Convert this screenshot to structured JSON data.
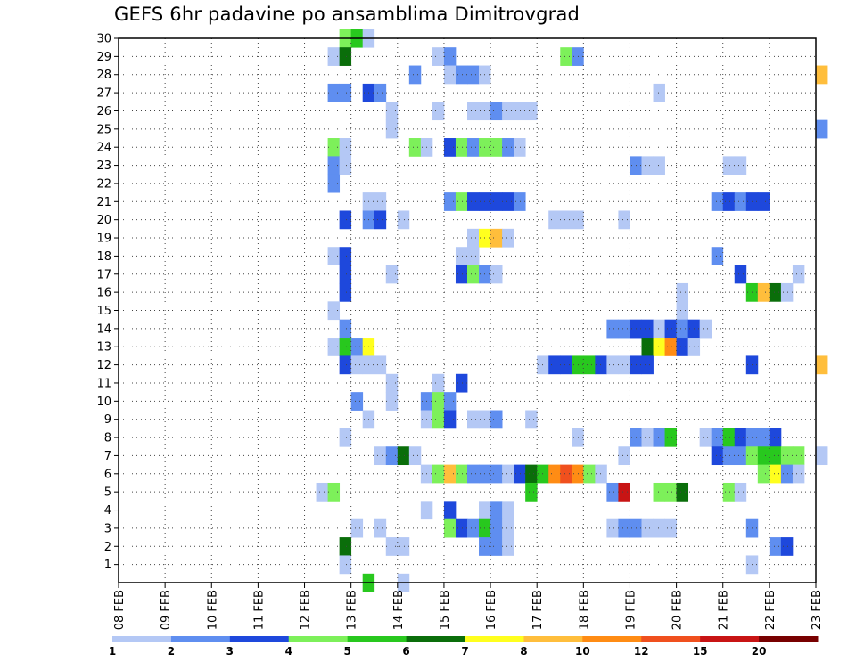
{
  "title": "GEFS 6hr padavine po ansamblima Dimitrovgrad",
  "chart_data": {
    "type": "heatmap",
    "title": "GEFS 6hr padavine po ansamblima Dimitrovgrad",
    "x_labels": [
      "08 FEB",
      "09 FEB",
      "10 FEB",
      "11 FEB",
      "12 FEB",
      "13 FEB",
      "14 FEB",
      "15 FEB",
      "16 FEB",
      "17 FEB",
      "18 FEB",
      "19 FEB",
      "20 FEB",
      "21 FEB",
      "22 FEB",
      "23 FEB"
    ],
    "y_labels": [
      "1",
      "2",
      "3",
      "4",
      "5",
      "6",
      "7",
      "8",
      "9",
      "10",
      "11",
      "12",
      "13",
      "14",
      "15",
      "16",
      "17",
      "18",
      "19",
      "20",
      "21",
      "22",
      "23",
      "24",
      "25",
      "26",
      "27",
      "28",
      "29",
      "30"
    ],
    "xlim": [
      "08 FEB",
      "23 FEB"
    ],
    "ylim": [
      0,
      30
    ],
    "grid": true,
    "legend": {
      "labels": [
        "1",
        "2",
        "3",
        "4",
        "5",
        "6",
        "7",
        "8",
        "10",
        "12",
        "15",
        "20"
      ],
      "colors": [
        "#b4c8f5",
        "#5f8ef0",
        "#1e48dc",
        "#7df05a",
        "#28c81e",
        "#0a6e0a",
        "#ffff1e",
        "#ffbe3c",
        "#ff8c14",
        "#f0501e",
        "#c81414",
        "#780000"
      ]
    },
    "cells": [
      [
        30,
        12.75,
        1,
        4
      ],
      [
        30,
        13,
        1,
        5
      ],
      [
        30,
        13.25,
        1,
        1
      ],
      [
        29,
        12.5,
        1,
        1
      ],
      [
        29,
        12.75,
        1,
        6
      ],
      [
        29,
        14.75,
        1,
        1
      ],
      [
        29,
        15,
        1,
        2
      ],
      [
        29,
        17.5,
        1,
        4
      ],
      [
        29,
        17.75,
        1,
        2
      ],
      [
        28,
        14.25,
        1,
        2
      ],
      [
        28,
        15,
        1,
        1
      ],
      [
        28,
        15.25,
        1,
        2
      ],
      [
        28,
        15.5,
        1,
        2
      ],
      [
        28,
        15.75,
        1,
        1
      ],
      [
        28,
        23,
        1,
        8
      ],
      [
        27,
        12.5,
        1,
        2
      ],
      [
        27,
        12.75,
        1,
        2
      ],
      [
        27,
        13.25,
        1,
        3
      ],
      [
        27,
        13.5,
        1,
        2
      ],
      [
        27,
        19.5,
        1,
        1
      ],
      [
        26,
        13.75,
        1,
        1
      ],
      [
        26,
        14.75,
        1,
        1
      ],
      [
        26,
        15.5,
        1,
        1
      ],
      [
        26,
        15.75,
        1,
        1
      ],
      [
        26,
        16,
        1,
        2
      ],
      [
        26,
        16.25,
        1,
        1
      ],
      [
        26,
        16.5,
        1,
        1
      ],
      [
        26,
        16.75,
        1,
        1
      ],
      [
        25,
        13.75,
        1,
        1
      ],
      [
        25,
        23,
        1,
        2
      ],
      [
        24,
        12.5,
        1,
        4
      ],
      [
        24,
        12.75,
        1,
        1
      ],
      [
        24,
        14.25,
        1,
        4
      ],
      [
        24,
        14.5,
        1,
        1
      ],
      [
        24,
        15,
        1,
        3
      ],
      [
        24,
        15.25,
        1,
        4
      ],
      [
        24,
        15.5,
        1,
        2
      ],
      [
        24,
        15.75,
        1,
        4
      ],
      [
        24,
        16,
        1,
        4
      ],
      [
        24,
        16.25,
        1,
        2
      ],
      [
        24,
        16.5,
        1,
        1
      ],
      [
        23,
        12.5,
        1,
        2
      ],
      [
        23,
        12.75,
        1,
        1
      ],
      [
        23,
        19,
        1,
        2
      ],
      [
        23,
        19.25,
        1,
        1
      ],
      [
        23,
        19.5,
        1,
        1
      ],
      [
        23,
        21,
        1,
        1
      ],
      [
        23,
        21.25,
        1,
        1
      ],
      [
        22,
        12.5,
        1,
        2
      ],
      [
        21,
        13.25,
        1,
        1
      ],
      [
        21,
        13.5,
        1,
        1
      ],
      [
        21,
        15,
        1,
        2
      ],
      [
        21,
        15.25,
        1,
        4
      ],
      [
        21,
        15.5,
        1,
        3
      ],
      [
        21,
        15.75,
        1,
        3
      ],
      [
        21,
        16,
        1,
        3
      ],
      [
        21,
        16.25,
        1,
        3
      ],
      [
        21,
        16.5,
        1,
        2
      ],
      [
        21,
        20.75,
        1,
        2
      ],
      [
        21,
        21,
        1,
        3
      ],
      [
        21,
        21.25,
        1,
        2
      ],
      [
        21,
        21.5,
        1,
        3
      ],
      [
        21,
        21.75,
        1,
        3
      ],
      [
        20,
        12.75,
        1,
        3
      ],
      [
        20,
        13.25,
        1,
        2
      ],
      [
        20,
        13.5,
        1,
        3
      ],
      [
        20,
        14,
        1,
        1
      ],
      [
        20,
        17.25,
        1,
        1
      ],
      [
        20,
        17.5,
        1,
        1
      ],
      [
        20,
        17.75,
        1,
        1
      ],
      [
        20,
        18.75,
        1,
        1
      ],
      [
        19,
        15.5,
        1,
        1
      ],
      [
        19,
        15.75,
        1,
        7
      ],
      [
        19,
        16,
        1,
        8
      ],
      [
        19,
        16.25,
        1,
        1
      ],
      [
        18,
        12.5,
        1,
        1
      ],
      [
        18,
        12.75,
        1,
        3
      ],
      [
        18,
        15.25,
        1,
        1
      ],
      [
        18,
        15.5,
        1,
        1
      ],
      [
        18,
        20.75,
        1,
        2
      ],
      [
        17,
        12.75,
        1,
        3
      ],
      [
        17,
        13.75,
        1,
        1
      ],
      [
        17,
        15.25,
        1,
        3
      ],
      [
        17,
        15.5,
        1,
        4
      ],
      [
        17,
        15.75,
        1,
        2
      ],
      [
        17,
        16,
        1,
        1
      ],
      [
        17,
        21.25,
        1,
        3
      ],
      [
        17,
        22.5,
        1,
        1
      ],
      [
        16,
        12.75,
        1,
        3
      ],
      [
        16,
        20,
        1,
        1
      ],
      [
        16,
        21.5,
        1,
        5
      ],
      [
        16,
        21.75,
        1,
        8
      ],
      [
        16,
        22,
        1,
        6
      ],
      [
        16,
        22.25,
        1,
        1
      ],
      [
        15,
        12.5,
        1,
        1
      ],
      [
        15,
        20,
        1,
        1
      ],
      [
        14,
        12.75,
        1,
        2
      ],
      [
        14,
        18.5,
        1,
        2
      ],
      [
        14,
        18.75,
        1,
        2
      ],
      [
        14,
        19,
        1,
        3
      ],
      [
        14,
        19.25,
        1,
        3
      ],
      [
        14,
        19.5,
        1,
        1
      ],
      [
        14,
        19.75,
        1,
        3
      ],
      [
        14,
        20,
        1,
        2
      ],
      [
        14,
        20.25,
        1,
        3
      ],
      [
        14,
        20.5,
        1,
        1
      ],
      [
        13,
        12.5,
        1,
        1
      ],
      [
        13,
        12.75,
        1,
        5
      ],
      [
        13,
        13,
        1,
        2
      ],
      [
        13,
        13.25,
        1,
        7
      ],
      [
        13,
        19.25,
        1,
        6
      ],
      [
        13,
        19.5,
        1,
        7
      ],
      [
        13,
        19.75,
        1,
        9
      ],
      [
        13,
        20,
        1,
        3
      ],
      [
        13,
        20.25,
        1,
        1
      ],
      [
        12,
        12.75,
        1,
        3
      ],
      [
        12,
        13,
        1,
        1
      ],
      [
        12,
        13.25,
        1,
        1
      ],
      [
        12,
        13.5,
        1,
        1
      ],
      [
        12,
        17,
        1,
        1
      ],
      [
        12,
        17.25,
        1,
        3
      ],
      [
        12,
        17.5,
        1,
        3
      ],
      [
        12,
        17.75,
        1,
        5
      ],
      [
        12,
        18,
        1,
        5
      ],
      [
        12,
        18.25,
        1,
        3
      ],
      [
        12,
        18.5,
        1,
        1
      ],
      [
        12,
        18.75,
        1,
        1
      ],
      [
        12,
        19,
        1,
        3
      ],
      [
        12,
        19.25,
        1,
        3
      ],
      [
        12,
        21.5,
        1,
        3
      ],
      [
        12,
        23,
        1,
        8
      ],
      [
        11,
        13.75,
        1,
        1
      ],
      [
        11,
        14.75,
        1,
        1
      ],
      [
        11,
        15.25,
        1,
        3
      ],
      [
        10,
        13,
        1,
        2
      ],
      [
        10,
        13.75,
        1,
        1
      ],
      [
        10,
        14.5,
        1,
        2
      ],
      [
        10,
        14.75,
        1,
        4
      ],
      [
        10,
        15,
        1,
        2
      ],
      [
        9,
        13.25,
        1,
        1
      ],
      [
        9,
        14.5,
        1,
        1
      ],
      [
        9,
        14.75,
        1,
        4
      ],
      [
        9,
        15,
        1,
        3
      ],
      [
        9,
        15.5,
        1,
        1
      ],
      [
        9,
        15.75,
        1,
        1
      ],
      [
        9,
        16,
        1,
        2
      ],
      [
        9,
        16.75,
        1,
        1
      ],
      [
        8,
        12.75,
        1,
        1
      ],
      [
        8,
        17.75,
        1,
        1
      ],
      [
        8,
        19,
        1,
        2
      ],
      [
        8,
        19.25,
        1,
        1
      ],
      [
        8,
        19.5,
        1,
        2
      ],
      [
        8,
        19.75,
        1,
        5
      ],
      [
        8,
        20.5,
        1,
        1
      ],
      [
        8,
        20.75,
        1,
        2
      ],
      [
        8,
        21,
        1,
        5
      ],
      [
        8,
        21.25,
        1,
        3
      ],
      [
        8,
        21.5,
        1,
        2
      ],
      [
        8,
        21.75,
        1,
        2
      ],
      [
        8,
        22,
        1,
        3
      ],
      [
        7,
        13.5,
        1,
        1
      ],
      [
        7,
        13.75,
        1,
        2
      ],
      [
        7,
        14,
        1,
        6
      ],
      [
        7,
        14.25,
        1,
        1
      ],
      [
        7,
        18.75,
        1,
        1
      ],
      [
        7,
        20.75,
        1,
        3
      ],
      [
        7,
        21,
        1,
        2
      ],
      [
        7,
        21.25,
        1,
        2
      ],
      [
        7,
        21.5,
        1,
        4
      ],
      [
        7,
        21.75,
        1,
        5
      ],
      [
        7,
        22,
        1,
        5
      ],
      [
        7,
        22.25,
        1,
        4
      ],
      [
        7,
        22.5,
        1,
        4
      ],
      [
        7,
        23,
        1,
        1
      ],
      [
        6,
        14.5,
        1,
        1
      ],
      [
        6,
        14.75,
        1,
        4
      ],
      [
        6,
        15,
        1,
        8
      ],
      [
        6,
        15.25,
        1,
        4
      ],
      [
        6,
        15.5,
        1,
        2
      ],
      [
        6,
        15.75,
        1,
        2
      ],
      [
        6,
        16,
        1,
        2
      ],
      [
        6,
        16.25,
        1,
        1
      ],
      [
        6,
        16.5,
        1,
        3
      ],
      [
        6,
        16.75,
        1,
        6
      ],
      [
        6,
        17,
        1,
        5
      ],
      [
        6,
        17.25,
        1,
        9
      ],
      [
        6,
        17.5,
        1,
        10
      ],
      [
        6,
        17.75,
        1,
        9
      ],
      [
        6,
        18,
        1,
        4
      ],
      [
        6,
        18.25,
        1,
        1
      ],
      [
        6,
        21.75,
        1,
        4
      ],
      [
        6,
        22,
        1,
        7
      ],
      [
        6,
        22.25,
        1,
        2
      ],
      [
        6,
        22.5,
        1,
        1
      ],
      [
        5,
        12.25,
        1,
        1
      ],
      [
        5,
        12.5,
        1,
        4
      ],
      [
        5,
        16.75,
        1,
        5
      ],
      [
        5,
        18.5,
        1,
        2
      ],
      [
        5,
        18.75,
        1,
        11
      ],
      [
        5,
        19.5,
        1,
        4
      ],
      [
        5,
        19.75,
        1,
        4
      ],
      [
        5,
        20,
        1,
        6
      ],
      [
        5,
        21,
        1,
        4
      ],
      [
        5,
        21.25,
        1,
        1
      ],
      [
        4,
        14.5,
        1,
        1
      ],
      [
        4,
        15,
        1,
        3
      ],
      [
        4,
        15.75,
        1,
        1
      ],
      [
        4,
        16,
        1,
        2
      ],
      [
        4,
        16.25,
        1,
        1
      ],
      [
        3,
        13,
        1,
        1
      ],
      [
        3,
        13.5,
        1,
        1
      ],
      [
        3,
        15,
        1,
        4
      ],
      [
        3,
        15.25,
        1,
        3
      ],
      [
        3,
        15.5,
        1,
        2
      ],
      [
        3,
        15.75,
        1,
        5
      ],
      [
        3,
        16,
        1,
        2
      ],
      [
        3,
        16.25,
        1,
        1
      ],
      [
        3,
        18.5,
        1,
        1
      ],
      [
        3,
        18.75,
        1,
        2
      ],
      [
        3,
        19,
        1,
        2
      ],
      [
        3,
        19.25,
        1,
        1
      ],
      [
        3,
        19.5,
        1,
        1
      ],
      [
        3,
        19.75,
        1,
        1
      ],
      [
        3,
        21.5,
        1,
        2
      ],
      [
        2,
        12.75,
        1,
        6
      ],
      [
        2,
        13.75,
        1,
        1
      ],
      [
        2,
        14,
        1,
        1
      ],
      [
        2,
        15.75,
        1,
        2
      ],
      [
        2,
        16,
        1,
        2
      ],
      [
        2,
        16.25,
        1,
        1
      ],
      [
        2,
        22,
        1,
        2
      ],
      [
        2,
        22.25,
        1,
        3
      ],
      [
        1,
        12.75,
        1,
        1
      ],
      [
        1,
        21.5,
        1,
        1
      ],
      [
        0,
        13.25,
        1,
        5
      ],
      [
        0,
        14,
        1,
        1
      ]
    ]
  }
}
